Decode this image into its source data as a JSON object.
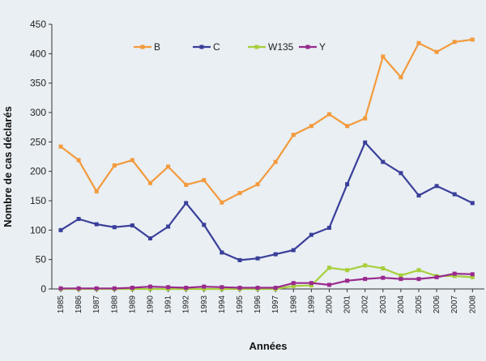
{
  "chart_data": {
    "type": "line",
    "title": "",
    "xlabel": "Années",
    "ylabel": "Nombre de cas déclarés",
    "ylim": [
      0,
      450
    ],
    "yticks": [
      0,
      50,
      100,
      150,
      200,
      250,
      300,
      350,
      400,
      450
    ],
    "grid": false,
    "legend_position": "top",
    "x": [
      "1985",
      "1986",
      "1987",
      "1988",
      "1989",
      "1990",
      "1991",
      "1992",
      "1993",
      "1994",
      "1995",
      "1996",
      "1997",
      "1998",
      "1999",
      "2000",
      "2001",
      "2002",
      "2003",
      "2004",
      "2005",
      "2006",
      "2007",
      "2008"
    ],
    "series": [
      {
        "name": "B",
        "color": "#f39a3c",
        "values": [
          242,
          219,
          166,
          210,
          219,
          180,
          208,
          177,
          185,
          147,
          163,
          178,
          216,
          262,
          277,
          297,
          277,
          290,
          395,
          360,
          418,
          403,
          420,
          424
        ]
      },
      {
        "name": "C",
        "color": "#3a3f9a",
        "values": [
          100,
          119,
          110,
          105,
          108,
          86,
          106,
          146,
          109,
          62,
          49,
          52,
          59,
          66,
          92,
          104,
          178,
          249,
          216,
          197,
          159,
          175,
          161,
          146
        ]
      },
      {
        "name": "W135",
        "color": "#a6cf3a",
        "values": [
          0,
          0,
          0,
          0,
          0,
          0,
          0,
          0,
          0,
          0,
          0,
          0,
          0,
          5,
          6,
          36,
          32,
          40,
          35,
          23,
          32,
          22,
          22,
          20
        ]
      },
      {
        "name": "Y",
        "color": "#9a2a8e",
        "values": [
          1,
          1,
          1,
          1,
          2,
          4,
          3,
          2,
          4,
          3,
          2,
          2,
          2,
          10,
          10,
          7,
          14,
          17,
          19,
          17,
          17,
          20,
          26,
          25
        ]
      }
    ]
  }
}
